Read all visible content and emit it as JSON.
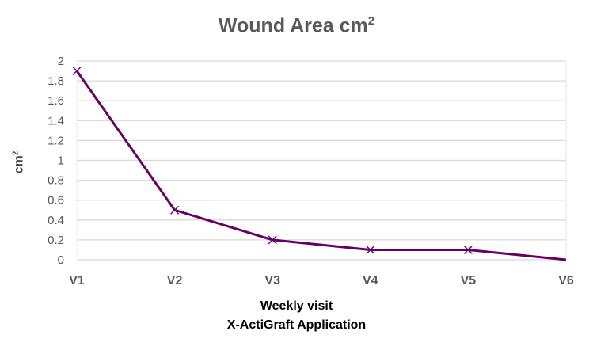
{
  "chart_data": {
    "type": "line",
    "title": "Wound Area cm",
    "title_sup": "2",
    "xlabel": [
      "Weekly visit",
      "X-ActiGraft Application"
    ],
    "ylabel": "cm",
    "ylabel_sup": "2",
    "categories": [
      "V1",
      "V2",
      "V3",
      "V4",
      "V5",
      "V6"
    ],
    "series": [
      {
        "name": "Wound Area",
        "values": [
          1.9,
          0.5,
          0.2,
          0.1,
          0.1,
          0
        ],
        "color": "#660066",
        "markers": [
          true,
          true,
          true,
          true,
          true,
          false
        ]
      }
    ],
    "ylim": [
      0,
      2
    ],
    "yticks": [
      0,
      0.2,
      0.4,
      0.6,
      0.8,
      1,
      1.2,
      1.4,
      1.6,
      1.8,
      2
    ],
    "ytick_labels": [
      "0",
      "0.2",
      "0.4",
      "0.6",
      "0.8",
      "1",
      "1.2",
      "1.4",
      "1.6",
      "1.8",
      "2"
    ],
    "grid": true,
    "legend": "none"
  }
}
